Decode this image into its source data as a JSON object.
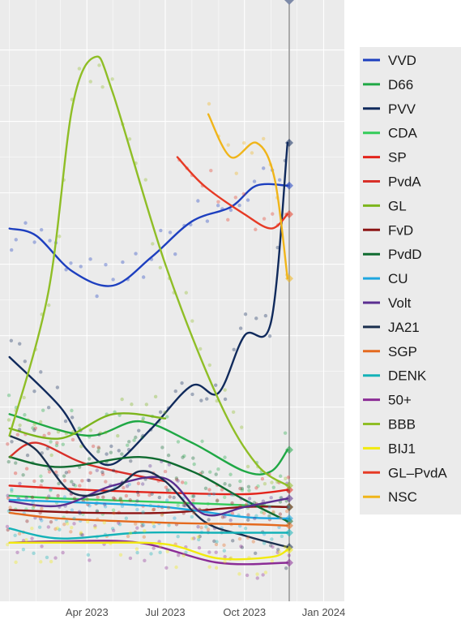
{
  "chart_data": {
    "type": "line",
    "x_ticks": [
      "Apr 2023",
      "Jul 2023",
      "Oct 2023",
      "Jan 2024"
    ],
    "grid": true,
    "legend_position": "right",
    "series": [
      {
        "name": "VVD",
        "color": "#1d3fbf",
        "points": [
          [
            "2023-01-01",
            22.5
          ],
          [
            "2023-02-01",
            22
          ],
          [
            "2023-03-15",
            19.5
          ],
          [
            "2023-05-01",
            18.5
          ],
          [
            "2023-06-15",
            20.5
          ],
          [
            "2023-08-01",
            23
          ],
          [
            "2023-09-15",
            24
          ],
          [
            "2023-10-15",
            25.5
          ],
          [
            "2023-11-20",
            25.5
          ]
        ]
      },
      {
        "name": "D66",
        "color": "#1fa845",
        "points": [
          [
            "2023-01-01",
            9.5
          ],
          [
            "2023-04-01",
            8
          ],
          [
            "2023-06-01",
            9
          ],
          [
            "2023-08-01",
            7.5
          ],
          [
            "2023-10-01",
            5.5
          ],
          [
            "2023-11-01",
            5.5
          ],
          [
            "2023-11-20",
            7
          ]
        ]
      },
      {
        "name": "PVV",
        "color": "#102a5c",
        "points": [
          [
            "2023-01-01",
            13.5
          ],
          [
            "2023-03-01",
            10
          ],
          [
            "2023-04-01",
            7
          ],
          [
            "2023-05-01",
            6
          ],
          [
            "2023-06-15",
            8.5
          ],
          [
            "2023-08-01",
            11.5
          ],
          [
            "2023-09-01",
            11
          ],
          [
            "2023-10-01",
            15
          ],
          [
            "2023-11-01",
            16
          ],
          [
            "2023-11-20",
            28.5
          ]
        ]
      },
      {
        "name": "CDA",
        "color": "#33cc5a",
        "points": [
          [
            "2023-01-01",
            3.8
          ],
          [
            "2023-03-01",
            3.6
          ],
          [
            "2023-06-01",
            3.4
          ],
          [
            "2023-09-01",
            3.2
          ],
          [
            "2023-11-20",
            3.0
          ]
        ]
      },
      {
        "name": "SP",
        "color": "#e3241b",
        "points": [
          [
            "2023-01-01",
            4.5
          ],
          [
            "2023-04-01",
            4.2
          ],
          [
            "2023-07-01",
            4.0
          ],
          [
            "2023-10-01",
            3.9
          ],
          [
            "2023-11-20",
            4.2
          ]
        ]
      },
      {
        "name": "PvdA",
        "color": "#d8302a",
        "points": [
          [
            "2023-01-01",
            6.5
          ],
          [
            "2023-02-01",
            7.5
          ],
          [
            "2023-04-01",
            6.0
          ],
          [
            "2023-07-01",
            4.8
          ]
        ]
      },
      {
        "name": "GL",
        "color": "#7cb51c",
        "points": [
          [
            "2023-01-01",
            8.5
          ],
          [
            "2023-03-01",
            7.8
          ],
          [
            "2023-05-01",
            9.5
          ],
          [
            "2023-07-01",
            9.2
          ]
        ]
      },
      {
        "name": "FvD",
        "color": "#8c1414",
        "points": [
          [
            "2023-01-01",
            2.8
          ],
          [
            "2023-04-01",
            2.6
          ],
          [
            "2023-07-01",
            2.6
          ],
          [
            "2023-10-01",
            3.0
          ],
          [
            "2023-11-20",
            3.0
          ]
        ]
      },
      {
        "name": "PvdD",
        "color": "#0f6b30",
        "points": [
          [
            "2023-01-01",
            6.5
          ],
          [
            "2023-03-01",
            5.8
          ],
          [
            "2023-06-01",
            6.5
          ],
          [
            "2023-08-01",
            5.5
          ],
          [
            "2023-10-01",
            3.5
          ],
          [
            "2023-11-20",
            2.0
          ]
        ]
      },
      {
        "name": "CU",
        "color": "#1ea6e0",
        "points": [
          [
            "2023-01-01",
            3.5
          ],
          [
            "2023-04-01",
            3.3
          ],
          [
            "2023-07-01",
            3.0
          ],
          [
            "2023-10-01",
            2.3
          ],
          [
            "2023-11-20",
            2.2
          ]
        ]
      },
      {
        "name": "Volt",
        "color": "#5a2e90",
        "points": [
          [
            "2023-01-01",
            3.4
          ],
          [
            "2023-03-01",
            3.1
          ],
          [
            "2023-05-01",
            4.5
          ],
          [
            "2023-07-01",
            5.0
          ],
          [
            "2023-08-15",
            2.5
          ],
          [
            "2023-10-01",
            3.0
          ],
          [
            "2023-11-20",
            3.6
          ]
        ]
      },
      {
        "name": "JA21",
        "color": "#1b2f4e",
        "points": [
          [
            "2023-01-01",
            8.0
          ],
          [
            "2023-02-01",
            7.0
          ],
          [
            "2023-03-15",
            4.0
          ],
          [
            "2023-05-01",
            4.2
          ],
          [
            "2023-06-01",
            5.5
          ],
          [
            "2023-07-01",
            4.8
          ],
          [
            "2023-08-15",
            2.0
          ],
          [
            "2023-10-01",
            1.0
          ],
          [
            "2023-11-20",
            0.2
          ]
        ]
      },
      {
        "name": "SGP",
        "color": "#e46a1f",
        "points": [
          [
            "2023-01-01",
            2.6
          ],
          [
            "2023-03-01",
            2.2
          ],
          [
            "2023-07-01",
            1.9
          ],
          [
            "2023-10-01",
            1.8
          ],
          [
            "2023-11-20",
            1.7
          ]
        ]
      },
      {
        "name": "DENK",
        "color": "#14b2b8",
        "points": [
          [
            "2023-01-01",
            1.5
          ],
          [
            "2023-03-01",
            0.8
          ],
          [
            "2023-06-01",
            1.2
          ],
          [
            "2023-09-01",
            1.2
          ],
          [
            "2023-11-20",
            1.2
          ]
        ]
      },
      {
        "name": "50+",
        "color": "#8b2c96",
        "points": [
          [
            "2023-01-01",
            0.5
          ],
          [
            "2023-03-01",
            0.6
          ],
          [
            "2023-06-01",
            0.5
          ],
          [
            "2023-09-01",
            -0.9
          ],
          [
            "2023-11-20",
            -0.9
          ]
        ]
      },
      {
        "name": "BBB",
        "color": "#8fbe26",
        "points": [
          [
            "2023-01-01",
            8.0
          ],
          [
            "2023-02-15",
            18
          ],
          [
            "2023-03-15",
            31
          ],
          [
            "2023-04-10",
            34.5
          ],
          [
            "2023-05-01",
            32
          ],
          [
            "2023-07-01",
            20
          ],
          [
            "2023-09-01",
            10.5
          ],
          [
            "2023-10-15",
            6
          ],
          [
            "2023-11-20",
            4.5
          ]
        ]
      },
      {
        "name": "BIJ1",
        "color": "#f2ea0e",
        "points": [
          [
            "2023-01-01",
            0.5
          ],
          [
            "2023-04-01",
            0.5
          ],
          [
            "2023-07-01",
            0.4
          ],
          [
            "2023-09-01",
            -0.6
          ],
          [
            "2023-11-01",
            -0.5
          ],
          [
            "2023-11-20",
            0.0
          ]
        ]
      },
      {
        "name": "GL–PvdA",
        "color": "#e63a25",
        "points": [
          [
            "2023-07-15",
            27.5
          ],
          [
            "2023-08-15",
            25.5
          ],
          [
            "2023-10-01",
            23.5
          ],
          [
            "2023-11-01",
            22.5
          ],
          [
            "2023-11-20",
            23.5
          ]
        ]
      },
      {
        "name": "NSC",
        "color": "#f0b51a",
        "points": [
          [
            "2023-08-20",
            30.5
          ],
          [
            "2023-09-15",
            27.5
          ],
          [
            "2023-10-15",
            28.5
          ],
          [
            "2023-11-05",
            26
          ],
          [
            "2023-11-20",
            19
          ]
        ]
      }
    ]
  }
}
